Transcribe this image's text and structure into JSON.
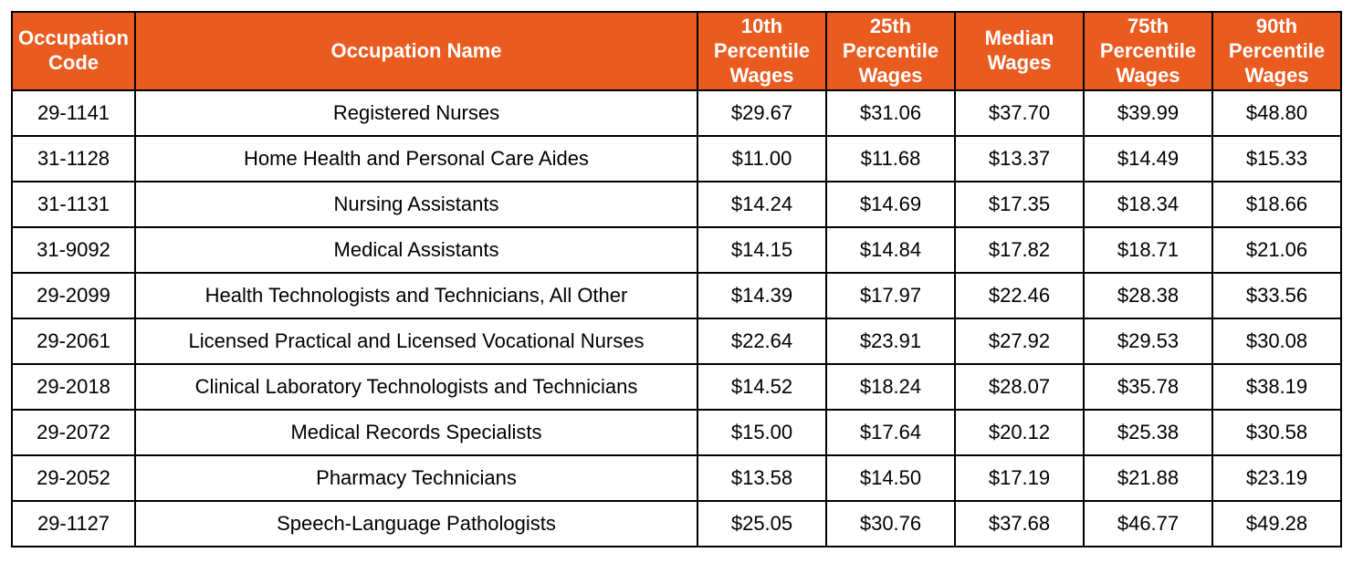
{
  "colors": {
    "header_bg": "#EA5B20",
    "header_text": "#FFFFFF",
    "body_text": "#000000",
    "border": "#000000",
    "row_bg": "#FFFFFF"
  },
  "chart_data": {
    "type": "table",
    "columns": [
      "Occupation Code",
      "Occupation Name",
      "10th Percentile Wages",
      "25th Percentile Wages",
      "Median Wages",
      "75th Percentile Wages",
      "90th Percentile Wages"
    ],
    "column_keys": [
      "code",
      "name",
      "p10",
      "p25",
      "median",
      "p75",
      "p90"
    ],
    "rows": [
      {
        "code": "29-1141",
        "name": "Registered Nurses",
        "p10": "$29.67",
        "p25": "$31.06",
        "median": "$37.70",
        "p75": "$39.99",
        "p90": "$48.80"
      },
      {
        "code": "31-1128",
        "name": "Home Health and Personal Care Aides",
        "p10": "$11.00",
        "p25": "$11.68",
        "median": "$13.37",
        "p75": "$14.49",
        "p90": "$15.33"
      },
      {
        "code": "31-1131",
        "name": "Nursing Assistants",
        "p10": "$14.24",
        "p25": "$14.69",
        "median": "$17.35",
        "p75": "$18.34",
        "p90": "$18.66"
      },
      {
        "code": "31-9092",
        "name": "Medical Assistants",
        "p10": "$14.15",
        "p25": "$14.84",
        "median": "$17.82",
        "p75": "$18.71",
        "p90": "$21.06"
      },
      {
        "code": "29-2099",
        "name": "Health Technologists and Technicians, All Other",
        "p10": "$14.39",
        "p25": "$17.97",
        "median": "$22.46",
        "p75": "$28.38",
        "p90": "$33.56"
      },
      {
        "code": "29-2061",
        "name": "Licensed Practical and Licensed Vocational Nurses",
        "p10": "$22.64",
        "p25": "$23.91",
        "median": "$27.92",
        "p75": "$29.53",
        "p90": "$30.08"
      },
      {
        "code": "29-2018",
        "name": "Clinical Laboratory Technologists and Technicians",
        "p10": "$14.52",
        "p25": "$18.24",
        "median": "$28.07",
        "p75": "$35.78",
        "p90": "$38.19"
      },
      {
        "code": "29-2072",
        "name": "Medical Records Specialists",
        "p10": "$15.00",
        "p25": "$17.64",
        "median": "$20.12",
        "p75": "$25.38",
        "p90": "$30.58"
      },
      {
        "code": "29-2052",
        "name": "Pharmacy Technicians",
        "p10": "$13.58",
        "p25": "$14.50",
        "median": "$17.19",
        "p75": "$21.88",
        "p90": "$23.19"
      },
      {
        "code": "29-1127",
        "name": "Speech-Language Pathologists",
        "p10": "$25.05",
        "p25": "$30.76",
        "median": "$37.68",
        "p75": "$46.77",
        "p90": "$49.28"
      }
    ]
  }
}
